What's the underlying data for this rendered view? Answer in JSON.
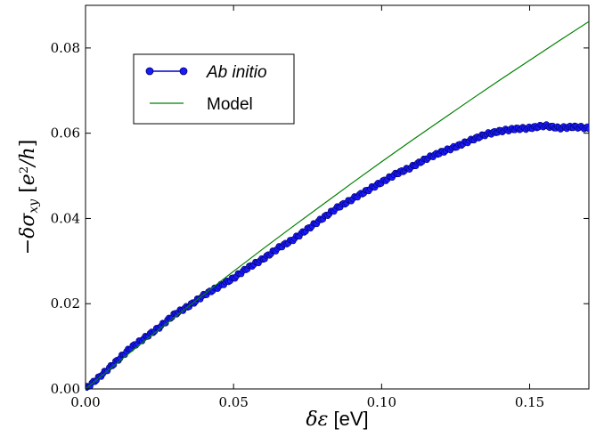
{
  "chart_data": {
    "type": "line",
    "xlabel": "δε [eV]",
    "ylabel": "−δσxy [e²/h]",
    "xlim": [
      0,
      0.17
    ],
    "ylim": [
      0,
      0.09
    ],
    "xticks": [
      0.0,
      0.05,
      0.1,
      0.15
    ],
    "xtick_labels": [
      "0.00",
      "0.05",
      "0.10",
      "0.15"
    ],
    "yticks": [
      0.0,
      0.02,
      0.04,
      0.06,
      0.08
    ],
    "ytick_labels": [
      "0.00",
      "0.02",
      "0.04",
      "0.06",
      "0.08"
    ],
    "grid": false,
    "legend_position": "upper-left",
    "series": [
      {
        "name": "Ab initio",
        "style": "line-with-dots",
        "color": "#0000cc",
        "marker_color": "#1a1aff",
        "x": [
          0.0,
          0.005,
          0.01,
          0.015,
          0.02,
          0.025,
          0.03,
          0.035,
          0.04,
          0.045,
          0.05,
          0.055,
          0.06,
          0.065,
          0.07,
          0.075,
          0.08,
          0.085,
          0.09,
          0.095,
          0.1,
          0.105,
          0.11,
          0.115,
          0.12,
          0.125,
          0.13,
          0.135,
          0.14,
          0.145,
          0.15,
          0.155,
          0.16,
          0.165,
          0.17
        ],
        "y": [
          0.0,
          0.003,
          0.0062,
          0.0095,
          0.012,
          0.0145,
          0.0175,
          0.0195,
          0.022,
          0.024,
          0.026,
          0.0285,
          0.0305,
          0.033,
          0.035,
          0.0375,
          0.04,
          0.0425,
          0.0445,
          0.0465,
          0.0485,
          0.0505,
          0.052,
          0.054,
          0.0555,
          0.0568,
          0.0583,
          0.0597,
          0.0605,
          0.061,
          0.0612,
          0.0618,
          0.0612,
          0.0615,
          0.0612
        ]
      },
      {
        "name": "Model",
        "style": "line",
        "color": "#008000",
        "x": [
          0.0,
          0.01,
          0.02,
          0.03,
          0.04,
          0.05,
          0.06,
          0.07,
          0.08,
          0.09,
          0.1,
          0.11,
          0.12,
          0.13,
          0.14,
          0.15,
          0.16,
          0.17
        ],
        "y": [
          0.0,
          0.0057,
          0.0113,
          0.0168,
          0.0222,
          0.0276,
          0.0329,
          0.0381,
          0.0432,
          0.0483,
          0.0533,
          0.0582,
          0.063,
          0.0678,
          0.0725,
          0.0771,
          0.0817,
          0.0862
        ]
      }
    ]
  }
}
